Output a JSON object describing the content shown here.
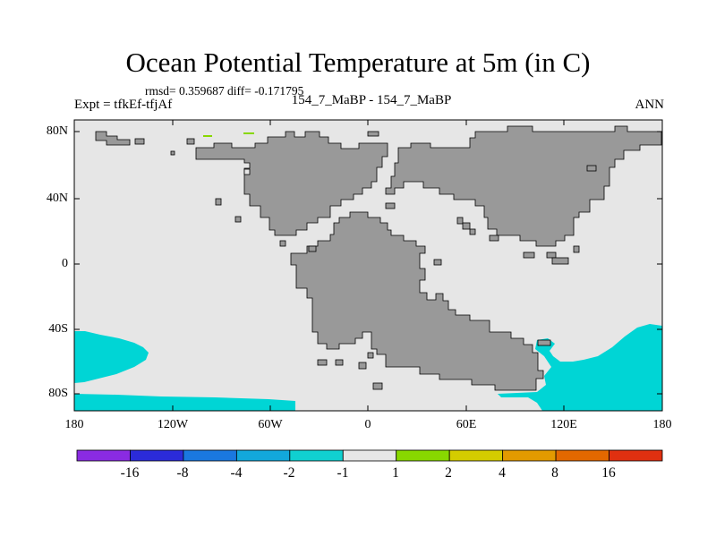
{
  "title": "Ocean Potential Temperature at 5m (in C)",
  "stats": "rmsd= 0.359687 diff= -0.171795",
  "experiment": "Expt = tfkEf-tfjAf",
  "period": "154_7_MaBP - 154_7_MaBP",
  "season": "ANN",
  "colors": {
    "ocean": "#e6e6e6",
    "land": "#999999",
    "anomaly_cold": "#00d5d5",
    "anomaly_warm": "#88d800",
    "border": "#000000"
  },
  "map": {
    "type": "filled-contour-map",
    "projection": "cylindrical-equidistant",
    "lon_range": [
      -180,
      180
    ],
    "lat_range": [
      -90,
      90
    ],
    "lat_ticks": [
      "80N",
      "40N",
      "0",
      "40S",
      "80S"
    ],
    "lon_ticks": [
      "180",
      "120W",
      "60W",
      "0",
      "60E",
      "120E",
      "180"
    ]
  },
  "colorbar": {
    "tick_labels": [
      "-16",
      "-8",
      "-4",
      "-2",
      "-1",
      "1",
      "2",
      "4",
      "8",
      "16"
    ],
    "bin_colors": [
      "#8a2be2",
      "#2b2bd9",
      "#1a78e0",
      "#12a8dc",
      "#10d0d0",
      "#e6e6e6",
      "#88d800",
      "#d4cc00",
      "#e39a00",
      "#e36800",
      "#e03010"
    ]
  }
}
